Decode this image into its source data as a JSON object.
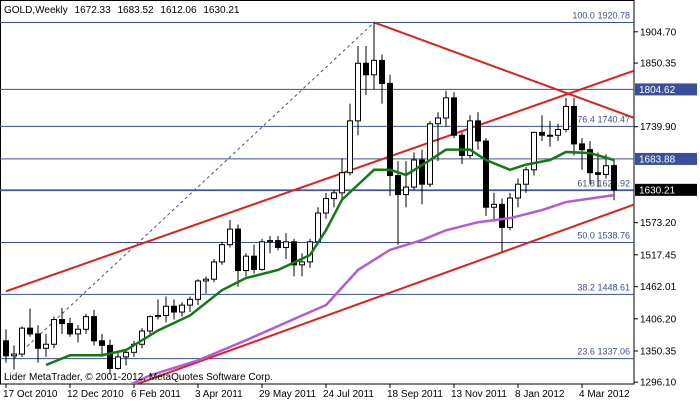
{
  "chart_data": {
    "type": "candlestick",
    "symbol": "GOLD,Weekly",
    "footer": "Lider MetaTrader, © 2001-2012, MetaQuotes Software Corp.",
    "categories": [
      "17 Oct 2010",
      null,
      null,
      null,
      null,
      null,
      null,
      null,
      "12 Dec 2010",
      null,
      null,
      null,
      null,
      null,
      null,
      null,
      "6 Feb 2011",
      null,
      null,
      null,
      null,
      null,
      null,
      null,
      "3 Apr 2011",
      null,
      null,
      null,
      null,
      null,
      null,
      null,
      "29 May 2011",
      null,
      null,
      null,
      null,
      null,
      null,
      null,
      "24 Jul 2011",
      null,
      null,
      null,
      null,
      null,
      null,
      null,
      "18 Sep 2011",
      null,
      null,
      null,
      null,
      null,
      null,
      null,
      "13 Nov 2011",
      null,
      null,
      null,
      null,
      null,
      null,
      null,
      "8 Jan 2012",
      null,
      null,
      null,
      null,
      null,
      null,
      null,
      "4 Mar 2012",
      null,
      null,
      null,
      null
    ],
    "open": [
      1368,
      1342,
      1345,
      1390,
      1380,
      1355,
      1362,
      1405,
      1398,
      1380,
      1388,
      1410,
      1368,
      1360,
      1320,
      1340,
      1348,
      1362,
      1385,
      1410,
      1412,
      1428,
      1418,
      1430,
      1440,
      1472,
      1475,
      1505,
      1535,
      1562,
      1490,
      1515,
      1492,
      1540,
      1542,
      1530,
      1540,
      1500,
      1505,
      1540,
      1590,
      1615,
      1625,
      1660,
      1750,
      1850,
      1830,
      1855,
      1815,
      1655,
      1622,
      1635,
      1682,
      1640,
      1745,
      1755,
      1790,
      1725,
      1690,
      1750,
      1715,
      1600,
      1605,
      1565,
      1616,
      1640,
      1665,
      1730,
      1725,
      1725,
      1735,
      1775,
      1710,
      1700,
      1660,
      1657,
      1672.33
    ],
    "high": [
      1388,
      1360,
      1393,
      1424,
      1395,
      1380,
      1410,
      1425,
      1408,
      1395,
      1415,
      1422,
      1380,
      1370,
      1348,
      1352,
      1368,
      1390,
      1412,
      1440,
      1445,
      1440,
      1435,
      1445,
      1475,
      1480,
      1510,
      1540,
      1578,
      1570,
      1520,
      1535,
      1545,
      1550,
      1550,
      1555,
      1545,
      1520,
      1545,
      1600,
      1625,
      1630,
      1685,
      1780,
      1880,
      1880,
      1921,
      1865,
      1830,
      1680,
      1680,
      1695,
      1700,
      1750,
      1765,
      1802,
      1800,
      1730,
      1760,
      1765,
      1720,
      1625,
      1615,
      1625,
      1650,
      1670,
      1730,
      1760,
      1750,
      1745,
      1790,
      1790,
      1720,
      1715,
      1695,
      1692,
      1683.52
    ],
    "low": [
      1330,
      1318,
      1340,
      1375,
      1330,
      1340,
      1355,
      1380,
      1375,
      1365,
      1380,
      1360,
      1340,
      1310,
      1318,
      1325,
      1340,
      1355,
      1380,
      1405,
      1400,
      1405,
      1410,
      1418,
      1430,
      1450,
      1470,
      1500,
      1530,
      1462,
      1480,
      1485,
      1490,
      1520,
      1525,
      1510,
      1480,
      1480,
      1495,
      1535,
      1580,
      1600,
      1615,
      1655,
      1725,
      1795,
      1805,
      1780,
      1620,
      1535,
      1600,
      1630,
      1605,
      1635,
      1680,
      1740,
      1720,
      1675,
      1685,
      1700,
      1585,
      1575,
      1523,
      1560,
      1600,
      1625,
      1655,
      1715,
      1705,
      1715,
      1730,
      1690,
      1665,
      1640,
      1635,
      1650,
      1612.06
    ],
    "close": [
      1342,
      1345,
      1390,
      1380,
      1355,
      1362,
      1405,
      1398,
      1380,
      1388,
      1410,
      1368,
      1360,
      1320,
      1340,
      1348,
      1362,
      1385,
      1410,
      1412,
      1428,
      1418,
      1430,
      1440,
      1472,
      1475,
      1505,
      1535,
      1562,
      1490,
      1515,
      1492,
      1540,
      1542,
      1530,
      1540,
      1500,
      1505,
      1540,
      1590,
      1615,
      1625,
      1660,
      1750,
      1850,
      1830,
      1855,
      1815,
      1655,
      1622,
      1635,
      1682,
      1640,
      1745,
      1755,
      1790,
      1725,
      1690,
      1750,
      1715,
      1600,
      1605,
      1565,
      1616,
      1640,
      1665,
      1730,
      1725,
      1725,
      1735,
      1775,
      1710,
      1700,
      1660,
      1657,
      1672,
      1630.21
    ],
    "bull_color": "#ffffff",
    "bear_color": "#000000",
    "ylim": [
      1293,
      1946
    ],
    "yticks": [
      {
        "value": 1904.7,
        "label": "1904.70"
      },
      1850.35,
      {
        "value": 1739.9,
        "label": "1739.90"
      },
      {
        "value": 1573.2,
        "label": "1573.20"
      },
      1517.45,
      1462.01,
      {
        "value": 1406.2,
        "label": "1406.20"
      },
      1350.35,
      {
        "value": 1296.1,
        "label": "1296.10"
      }
    ],
    "series": [
      {
        "color": "#117a11",
        "x": [
          5,
          8,
          12,
          15,
          19,
          23,
          27,
          30,
          34,
          38,
          40,
          42,
          44,
          46,
          48,
          50,
          53,
          55,
          58,
          60,
          63,
          65,
          68,
          70,
          73,
          76
        ],
        "values": [
          1326,
          1343,
          1343,
          1352,
          1386,
          1412,
          1456,
          1477,
          1491,
          1517,
          1560,
          1613,
          1639,
          1665,
          1665,
          1656,
          1682,
          1700,
          1700,
          1682,
          1665,
          1674,
          1682,
          1696,
          1694,
          1682
        ]
      },
      {
        "color": "#b45ad2",
        "x": [
          14,
          18,
          24,
          30,
          37,
          40,
          44,
          48,
          52,
          55,
          59,
          63,
          67,
          70,
          76
        ],
        "values": [
          1282,
          1308,
          1334,
          1369,
          1412,
          1430,
          1491,
          1526,
          1543,
          1560,
          1574,
          1581,
          1595,
          1609,
          1621
        ]
      }
    ],
    "fib_color": "#3a4f9c",
    "fib_levels": [
      {
        "level": "100.0",
        "price": 1920.78
      },
      {
        "level": "76.4",
        "price": 1740.47
      },
      {
        "level": "61.8",
        "price": 1628.92
      },
      {
        "level": "50.0",
        "price": 1538.76
      },
      {
        "level": "38.2",
        "price": 1448.61
      },
      {
        "level": "23.6",
        "price": 1337.06
      }
    ],
    "fib_anchor_x": [
      1,
      46
    ],
    "price_lines": [
      {
        "value": 1804.62,
        "color": "#3a4f9c"
      },
      {
        "value": 1683.88,
        "color": "#3a4f9c"
      }
    ],
    "current_color": "#000000",
    "trend_color": "#e0201c",
    "trendlines": [
      {
        "x": [
          0,
          76
        ],
        "y": [
          1454,
          1825
        ]
      },
      {
        "x": [
          15,
          76
        ],
        "y": [
          1286,
          1592
        ]
      },
      {
        "x": [
          46,
          76
        ],
        "y": [
          1921,
          1768
        ]
      }
    ]
  }
}
